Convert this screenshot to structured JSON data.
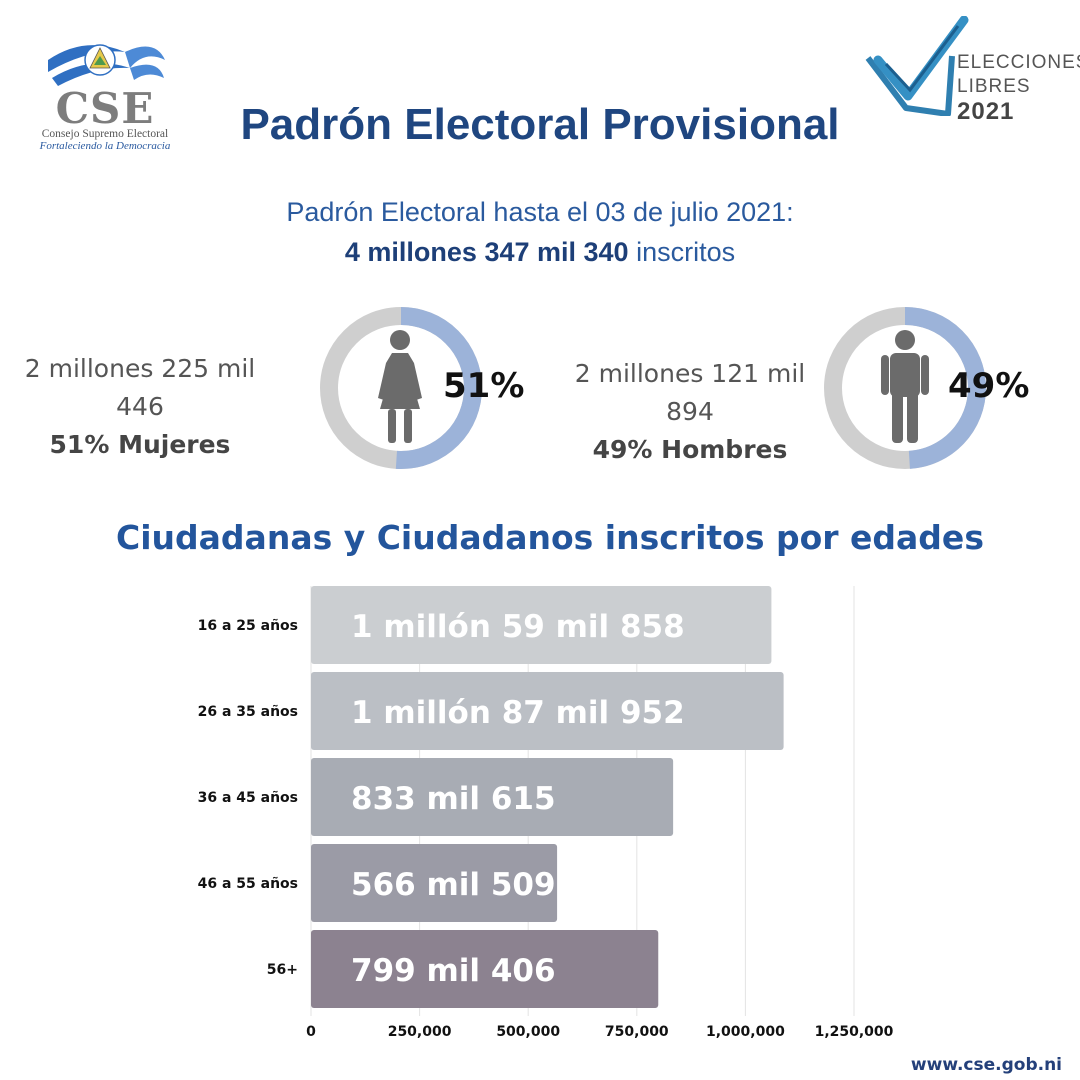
{
  "header": {
    "logo_acronym": "CSE",
    "logo_name": "Consejo Supremo Electoral",
    "logo_slogan": "Fortaleciendo la Democracia",
    "badge_line1": "ELECCIONES",
    "badge_line2": "LIBRES",
    "badge_year": "2021",
    "title": "Padrón Electoral Provisional"
  },
  "summary": {
    "line1": "Padrón Electoral hasta el 03 de julio 2021:",
    "total_bold": "4 millones 347 mil 340",
    "total_suffix": " inscritos"
  },
  "gender": {
    "women": {
      "count_text": "2 millones 225 mil 446",
      "label": "51% Mujeres",
      "percent_label": "51%",
      "percent": 51
    },
    "men": {
      "count_text": "2 millones 121 mil 894",
      "label": "49% Hombres",
      "percent_label": "49%",
      "percent": 49
    }
  },
  "colors": {
    "donut_track": "#cfcfcf",
    "donut_fill": "#9cb3d9",
    "icon": "#6b6b6b",
    "title_blue": "#1f4680"
  },
  "icons": {
    "women": "woman-figure-icon",
    "men": "man-figure-icon"
  },
  "chart_data": {
    "type": "bar",
    "orientation": "horizontal",
    "title": "Ciudadanas y Ciudadanos inscritos por edades",
    "categories": [
      "16 a 25 años",
      "26 a 35 años",
      "36 a 45 años",
      "46 a 55 años",
      "56+"
    ],
    "values": [
      1059858,
      1087952,
      833615,
      566509,
      799406
    ],
    "data_labels": [
      "1 millón 59 mil 858",
      "1 millón 87 mil 952",
      "833 mil 615",
      "566 mil 509",
      "799 mil 406"
    ],
    "bar_colors": [
      "#cbced1",
      "#bbbfc5",
      "#a8acb4",
      "#9b9ba6",
      "#8c8290"
    ],
    "x_ticks": [
      0,
      250000,
      500000,
      750000,
      1000000,
      1250000
    ],
    "x_tick_labels": [
      "0",
      "250,000",
      "500,000",
      "750,000",
      "1,000,000",
      "1,250,000"
    ],
    "xlim": [
      0,
      1250000
    ],
    "grid": true,
    "xlabel": "",
    "ylabel": ""
  },
  "footer": {
    "website": "www.cse.gob.ni"
  }
}
